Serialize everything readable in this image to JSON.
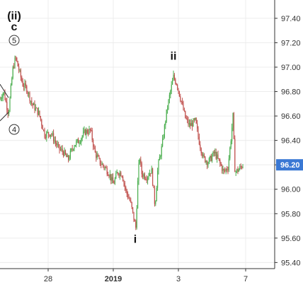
{
  "chart_data": {
    "type": "candlestick",
    "ylim": [
      95.35,
      97.55
    ],
    "y_ticks": [
      95.4,
      95.6,
      95.8,
      96.0,
      96.2,
      96.4,
      96.6,
      96.8,
      97.0,
      97.2,
      97.4
    ],
    "y_tick_labels": [
      "95.40",
      "95.60",
      "95.80",
      "96.00",
      "96.20",
      "96.40",
      "96.60",
      "96.80",
      "97.00",
      "97.20",
      "97.40"
    ],
    "x_tick_labels": [
      "28",
      "2019",
      "3",
      "7"
    ],
    "grid": true,
    "last_price": 96.2,
    "last_price_label": "96.20",
    "up_color": "#4caf50",
    "down_color": "#c0504d",
    "badge_color": "#3a78d4",
    "price_path": [
      {
        "t": 0,
        "v": 96.74
      },
      {
        "t": 5,
        "v": 96.8
      },
      {
        "t": 12,
        "v": 96.62
      },
      {
        "t": 18,
        "v": 96.98
      },
      {
        "t": 22,
        "v": 97.08
      },
      {
        "t": 27,
        "v": 96.97
      },
      {
        "t": 32,
        "v": 96.86
      },
      {
        "t": 38,
        "v": 96.82
      },
      {
        "t": 45,
        "v": 96.7
      },
      {
        "t": 55,
        "v": 96.62
      },
      {
        "t": 63,
        "v": 96.45
      },
      {
        "t": 72,
        "v": 96.46
      },
      {
        "t": 82,
        "v": 96.34
      },
      {
        "t": 90,
        "v": 96.3
      },
      {
        "t": 96,
        "v": 96.24
      },
      {
        "t": 104,
        "v": 96.36
      },
      {
        "t": 112,
        "v": 96.4
      },
      {
        "t": 120,
        "v": 96.47
      },
      {
        "t": 128,
        "v": 96.48
      },
      {
        "t": 134,
        "v": 96.3
      },
      {
        "t": 141,
        "v": 96.22
      },
      {
        "t": 148,
        "v": 96.18
      },
      {
        "t": 155,
        "v": 96.12
      },
      {
        "t": 160,
        "v": 96.04
      },
      {
        "t": 166,
        "v": 96.14
      },
      {
        "t": 172,
        "v": 96.13
      },
      {
        "t": 178,
        "v": 95.98
      },
      {
        "t": 184,
        "v": 95.9
      },
      {
        "t": 189,
        "v": 95.76
      },
      {
        "t": 192,
        "v": 95.68
      },
      {
        "t": 194,
        "v": 96.0
      },
      {
        "t": 197,
        "v": 96.28
      },
      {
        "t": 200,
        "v": 96.13
      },
      {
        "t": 207,
        "v": 96.1
      },
      {
        "t": 214,
        "v": 96.16
      },
      {
        "t": 219,
        "v": 95.86
      },
      {
        "t": 223,
        "v": 96.18
      },
      {
        "t": 229,
        "v": 96.36
      },
      {
        "t": 235,
        "v": 96.62
      },
      {
        "t": 240,
        "v": 96.78
      },
      {
        "t": 245,
        "v": 96.92
      },
      {
        "t": 250,
        "v": 96.86
      },
      {
        "t": 256,
        "v": 96.72
      },
      {
        "t": 262,
        "v": 96.58
      },
      {
        "t": 268,
        "v": 96.52
      },
      {
        "t": 276,
        "v": 96.56
      },
      {
        "t": 281,
        "v": 96.4
      },
      {
        "t": 287,
        "v": 96.26
      },
      {
        "t": 294,
        "v": 96.22
      },
      {
        "t": 303,
        "v": 96.3
      },
      {
        "t": 310,
        "v": 96.22
      },
      {
        "t": 316,
        "v": 96.14
      },
      {
        "t": 322,
        "v": 96.18
      },
      {
        "t": 326,
        "v": 96.4
      },
      {
        "t": 329,
        "v": 96.6
      },
      {
        "t": 332,
        "v": 96.14
      },
      {
        "t": 337,
        "v": 96.16
      },
      {
        "t": 343,
        "v": 96.2
      }
    ],
    "wave_labels": [
      {
        "text": "(ii)",
        "t": 20,
        "v": 97.39
      },
      {
        "text": "c",
        "t": 20,
        "v": 97.3
      },
      {
        "text": "ii",
        "t": 245,
        "v": 97.06
      },
      {
        "text": "i",
        "t": 191,
        "v": 95.56
      }
    ],
    "circled_labels": [
      {
        "text": "5",
        "t": 20,
        "v": 97.22
      },
      {
        "text": "4",
        "t": 20,
        "v": 96.49
      }
    ]
  }
}
